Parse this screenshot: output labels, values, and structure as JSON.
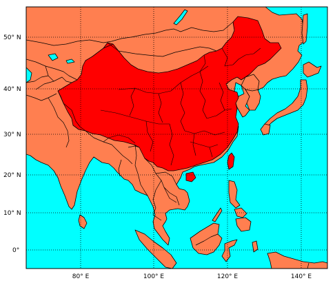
{
  "map": {
    "projection": "Miller / equirectangular",
    "extent": {
      "lon_min": 65,
      "lon_max": 148,
      "lat_min": -5,
      "lat_max": 57
    },
    "colors": {
      "ocean": "#00FFFF",
      "land": "#FF7F50",
      "highlight": "#FF0000",
      "border": "#000000",
      "graticule": "#000000"
    },
    "highlighted_country": "China",
    "graticule_style": "dotted"
  },
  "axes": {
    "lat_labels": [
      {
        "value": 50,
        "text": "50° N"
      },
      {
        "value": 40,
        "text": "40° N"
      },
      {
        "value": 30,
        "text": "30° N"
      },
      {
        "value": 20,
        "text": "20° N"
      },
      {
        "value": 10,
        "text": "10° N"
      },
      {
        "value": 0,
        "text": "0°"
      }
    ],
    "lon_labels": [
      {
        "value": 80,
        "text": "80° E"
      },
      {
        "value": 100,
        "text": "100° E"
      },
      {
        "value": 120,
        "text": "120° E"
      },
      {
        "value": 140,
        "text": "140° E"
      }
    ]
  }
}
